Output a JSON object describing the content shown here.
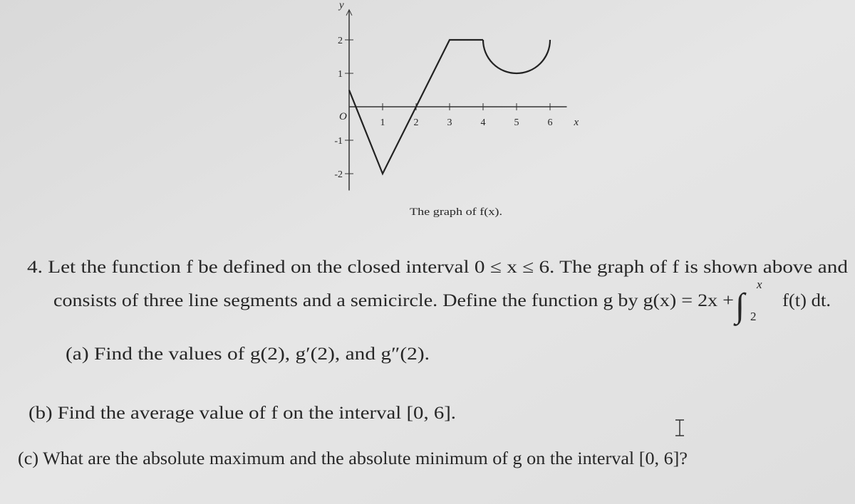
{
  "chart_data": {
    "type": "line",
    "x": [
      0,
      1,
      2,
      3,
      4
    ],
    "values": [
      0.5,
      -2,
      0,
      2,
      2
    ],
    "arc": {
      "x": [
        4,
        5,
        6
      ],
      "values": [
        2,
        1,
        2
      ]
    },
    "color": "#222222",
    "xlim": [
      0,
      6.5
    ],
    "ylim": [
      -2.5,
      2.9
    ],
    "xticks": [
      1,
      2,
      3,
      4,
      5,
      6
    ],
    "yticks": [
      -2,
      -1,
      1,
      2
    ],
    "origin_label": "O",
    "xlabel": "x",
    "ylabel": "y",
    "caption": "The graph of f(x)."
  },
  "problem": {
    "line1": "4. Let the function f be defined on the closed interval 0 ≤ x ≤ 6. The graph of f is shown above and",
    "line2": "consists of three line segments and a semicircle. Define the function g by g(x) = 2x +",
    "integral": "∫",
    "upper_limit": "x",
    "lower_limit": "2",
    "integrand": "f(t) dt.",
    "part_a": "(a) Find the values of g(2), g′(2), and g″(2).",
    "part_b": "(b) Find the average value of f on the interval [0, 6].",
    "part_c": "(c) What are the absolute maximum and the absolute minimum of g on the interval [0, 6]?"
  }
}
